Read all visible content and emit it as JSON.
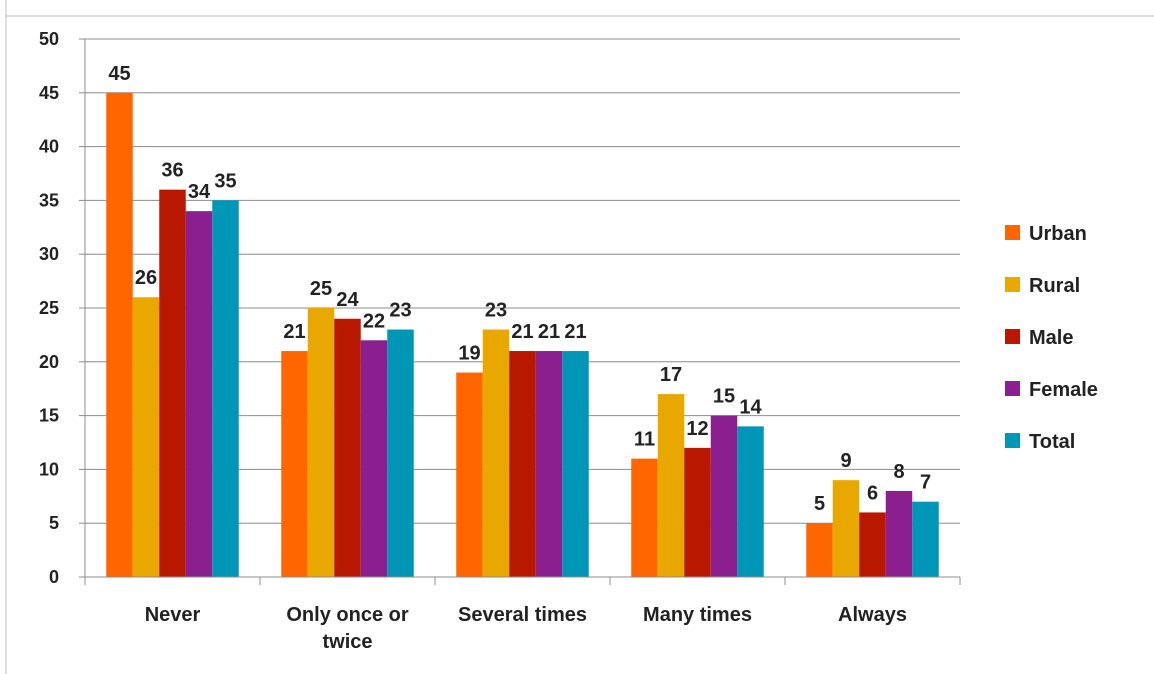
{
  "chart_data": {
    "type": "bar",
    "title": "",
    "xlabel": "",
    "ylabel": "",
    "ylim": [
      0,
      50
    ],
    "yticks": [
      0,
      5,
      10,
      15,
      20,
      25,
      30,
      35,
      40,
      45,
      50
    ],
    "grid": true,
    "legend_position": "right",
    "categories": [
      "Never",
      "Only once or twice",
      "Several times",
      "Many times",
      "Always"
    ],
    "series": [
      {
        "name": "Urban",
        "color": "#ff6600",
        "values": [
          45,
          21,
          19,
          11,
          5
        ]
      },
      {
        "name": "Rural",
        "color": "#e8a800",
        "values": [
          26,
          25,
          23,
          17,
          9
        ]
      },
      {
        "name": "Male",
        "color": "#b81800",
        "values": [
          36,
          24,
          21,
          12,
          6
        ]
      },
      {
        "name": "Female",
        "color": "#8b1f8f",
        "values": [
          34,
          22,
          21,
          15,
          8
        ]
      },
      {
        "name": "Total",
        "color": "#0096b8",
        "values": [
          35,
          23,
          21,
          14,
          7
        ]
      }
    ]
  }
}
